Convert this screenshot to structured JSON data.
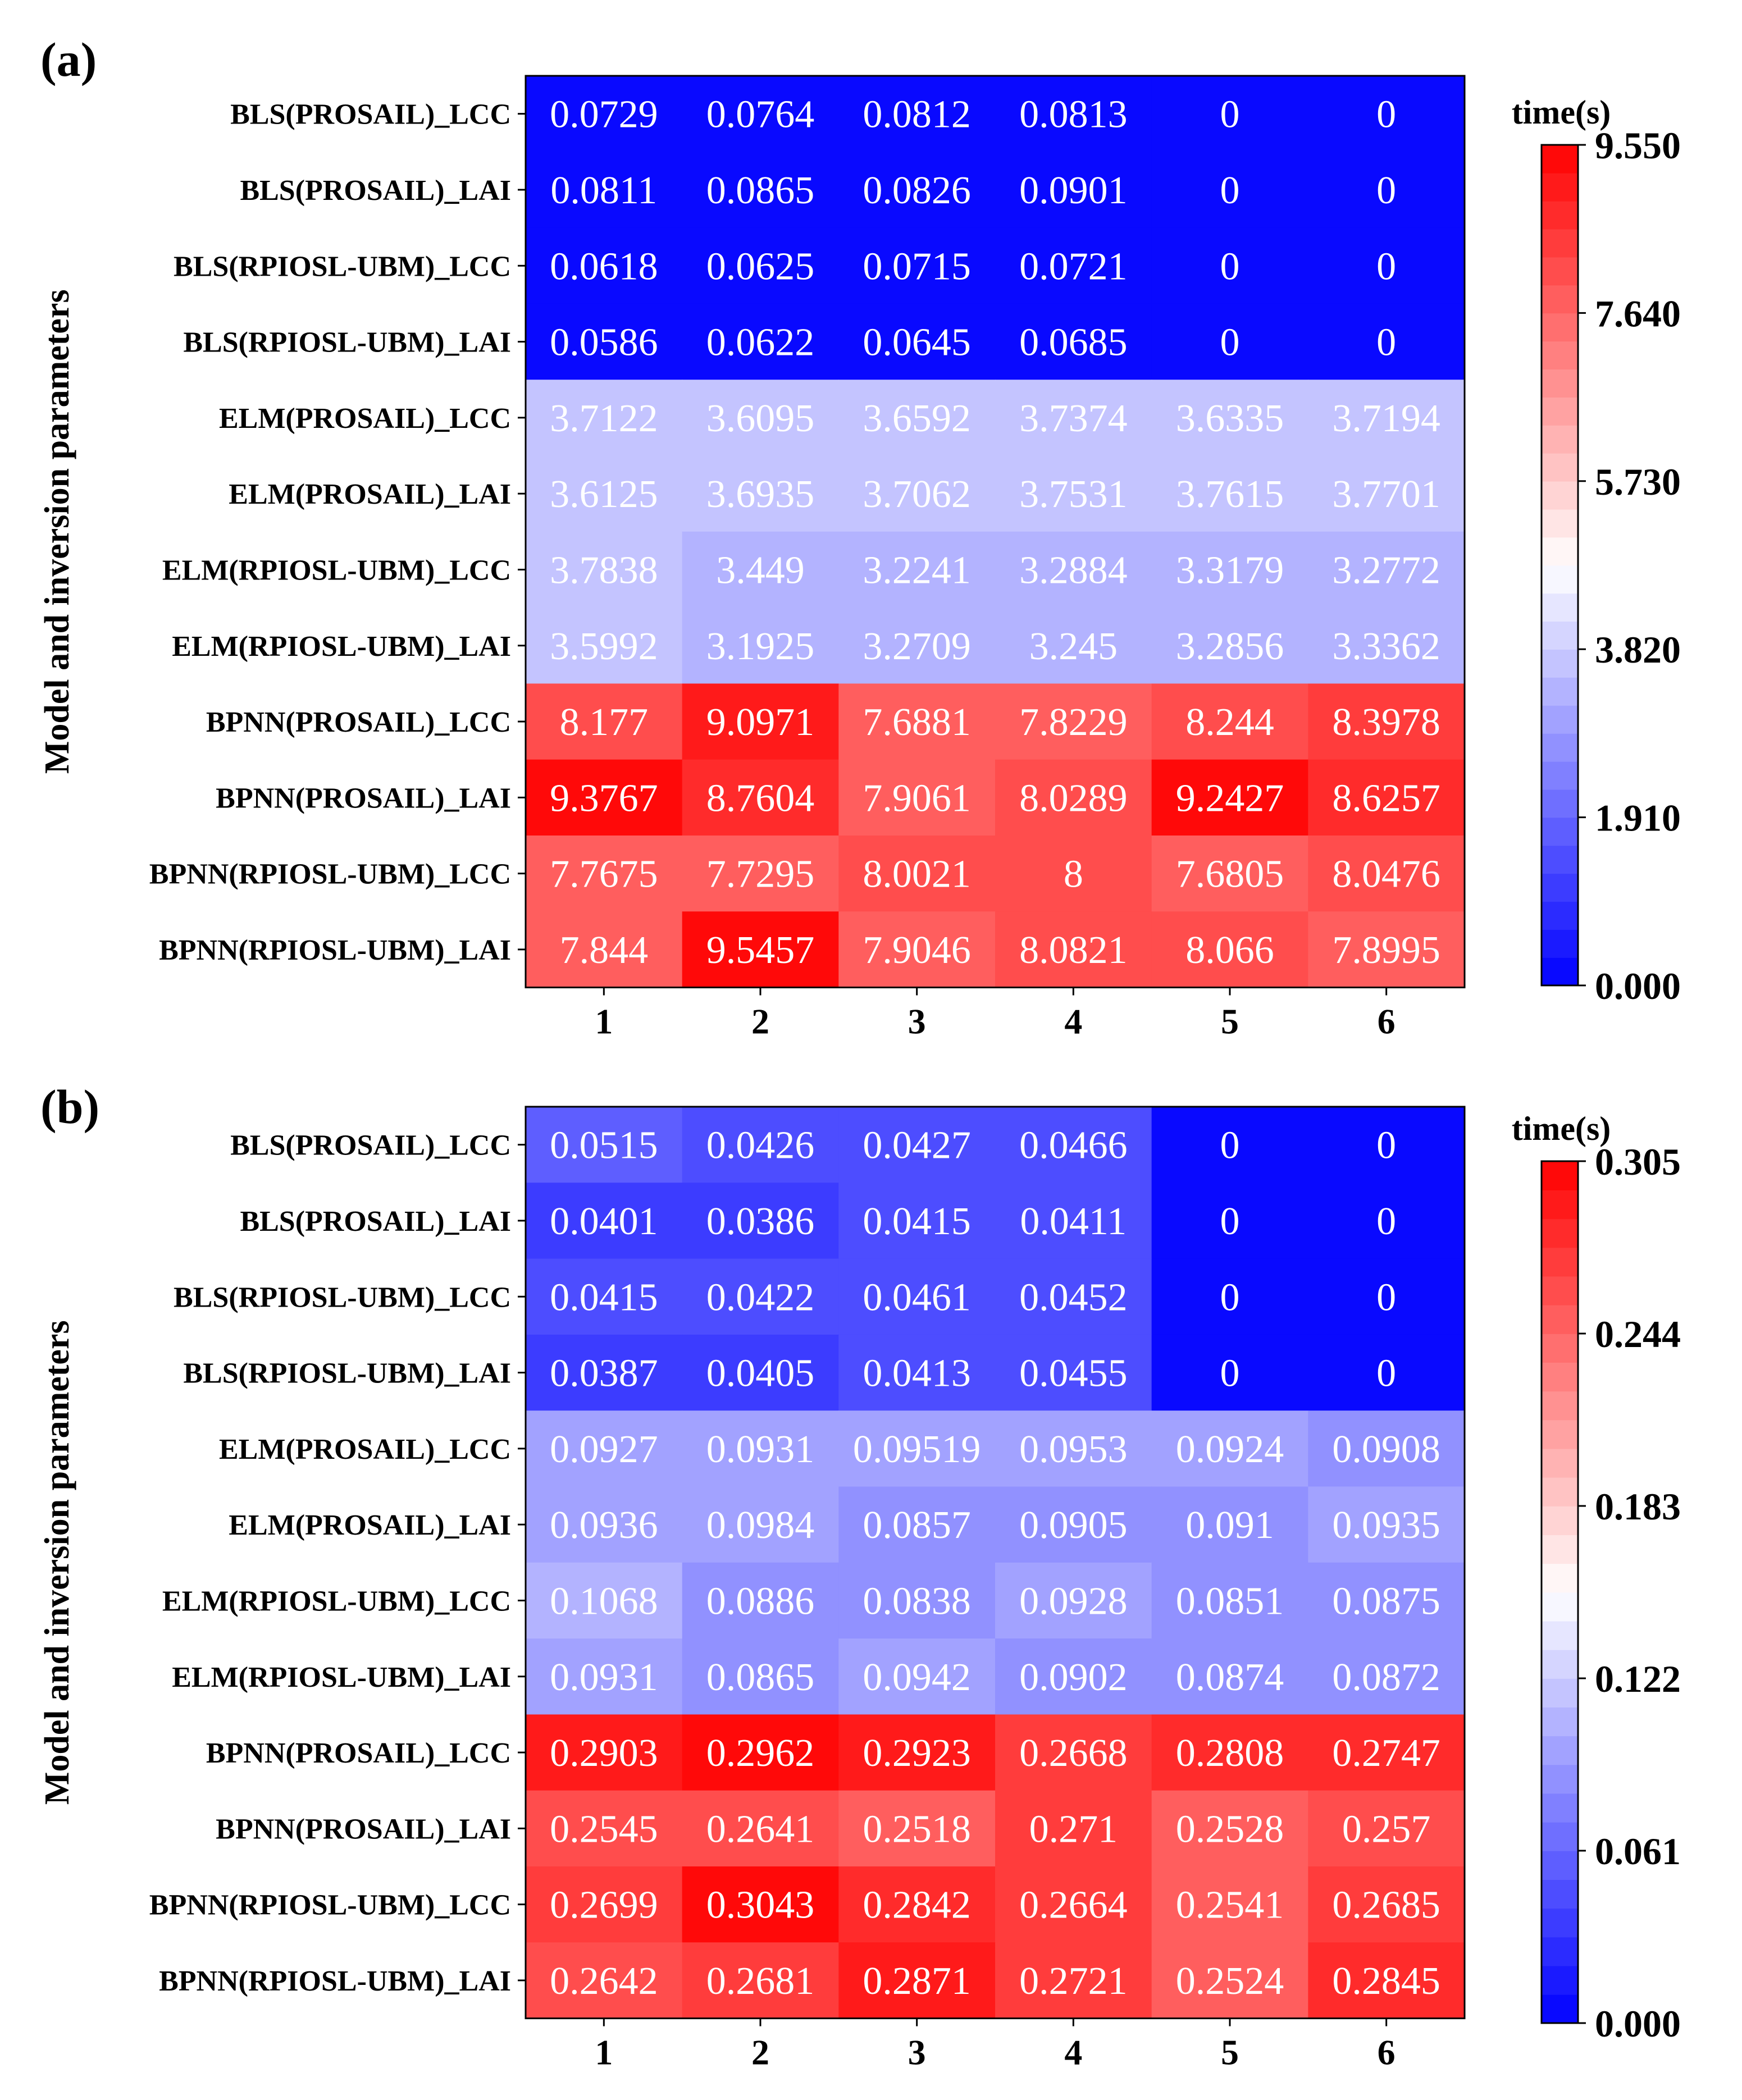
{
  "chart_data": [
    {
      "type": "heatmap",
      "panel_label": "(a)",
      "ylabel": "Model and inversion parameters",
      "rows": [
        "BLS(PROSAIL)_LCC",
        "BLS(PROSAIL)_LAI",
        "BLS(RPIOSL-UBM)_LCC",
        "BLS(RPIOSL-UBM)_LAI",
        "ELM(PROSAIL)_LCC",
        "ELM(PROSAIL)_LAI",
        "ELM(RPIOSL-UBM)_LCC",
        "ELM(RPIOSL-UBM)_LAI",
        "BPNN(PROSAIL)_LCC",
        "BPNN(PROSAIL)_LAI",
        "BPNN(RPIOSL-UBM)_LCC",
        "BPNN(RPIOSL-UBM)_LAI"
      ],
      "columns": [
        "1",
        "2",
        "3",
        "4",
        "5",
        "6"
      ],
      "cell_labels": [
        [
          "0.0729",
          "0.0764",
          "0.0812",
          "0.0813",
          "0",
          "0"
        ],
        [
          "0.0811",
          "0.0865",
          "0.0826",
          "0.0901",
          "0",
          "0"
        ],
        [
          "0.0618",
          "0.0625",
          "0.0715",
          "0.0721",
          "0",
          "0"
        ],
        [
          "0.0586",
          "0.0622",
          "0.0645",
          "0.0685",
          "0",
          "0"
        ],
        [
          "3.7122",
          "3.6095",
          "3.6592",
          "3.7374",
          "3.6335",
          "3.7194"
        ],
        [
          "3.6125",
          "3.6935",
          "3.7062",
          "3.7531",
          "3.7615",
          "3.7701"
        ],
        [
          "3.7838",
          "3.449",
          "3.2241",
          "3.2884",
          "3.3179",
          "3.2772"
        ],
        [
          "3.5992",
          "3.1925",
          "3.2709",
          "3.245",
          "3.2856",
          "3.3362"
        ],
        [
          "8.177",
          "9.0971",
          "7.6881",
          "7.8229",
          "8.244",
          "8.3978"
        ],
        [
          "9.3767",
          "8.7604",
          "7.9061",
          "8.0289",
          "9.2427",
          "8.6257"
        ],
        [
          "7.7675",
          "7.7295",
          "8.0021",
          "8",
          "7.6805",
          "8.0476"
        ],
        [
          "7.844",
          "9.5457",
          "7.9046",
          "8.0821",
          "8.066",
          "7.8995"
        ]
      ],
      "colorbar": {
        "title": "time(s)",
        "vmin": 0.0,
        "vmax": 9.55,
        "tick_labels": [
          "0.000",
          "1.910",
          "3.820",
          "5.730",
          "7.640",
          "9.550"
        ],
        "colormap": "bwr",
        "levels": 30
      }
    },
    {
      "type": "heatmap",
      "panel_label": "(b)",
      "ylabel": "Model and inversion parameters",
      "rows": [
        "BLS(PROSAIL)_LCC",
        "BLS(PROSAIL)_LAI",
        "BLS(RPIOSL-UBM)_LCC",
        "BLS(RPIOSL-UBM)_LAI",
        "ELM(PROSAIL)_LCC",
        "ELM(PROSAIL)_LAI",
        "ELM(RPIOSL-UBM)_LCC",
        "ELM(RPIOSL-UBM)_LAI",
        "BPNN(PROSAIL)_LCC",
        "BPNN(PROSAIL)_LAI",
        "BPNN(RPIOSL-UBM)_LCC",
        "BPNN(RPIOSL-UBM)_LAI"
      ],
      "columns": [
        "1",
        "2",
        "3",
        "4",
        "5",
        "6"
      ],
      "cell_labels": [
        [
          "0.0515",
          "0.0426",
          "0.0427",
          "0.0466",
          "0",
          "0"
        ],
        [
          "0.0401",
          "0.0386",
          "0.0415",
          "0.0411",
          "0",
          "0"
        ],
        [
          "0.0415",
          "0.0422",
          "0.0461",
          "0.0452",
          "0",
          "0"
        ],
        [
          "0.0387",
          "0.0405",
          "0.0413",
          "0.0455",
          "0",
          "0"
        ],
        [
          "0.0927",
          "0.0931",
          "0.09519",
          "0.0953",
          "0.0924",
          "0.0908"
        ],
        [
          "0.0936",
          "0.0984",
          "0.0857",
          "0.0905",
          "0.091",
          "0.0935"
        ],
        [
          "0.1068",
          "0.0886",
          "0.0838",
          "0.0928",
          "0.0851",
          "0.0875"
        ],
        [
          "0.0931",
          "0.0865",
          "0.0942",
          "0.0902",
          "0.0874",
          "0.0872"
        ],
        [
          "0.2903",
          "0.2962",
          "0.2923",
          "0.2668",
          "0.2808",
          "0.2747"
        ],
        [
          "0.2545",
          "0.2641",
          "0.2518",
          "0.271",
          "0.2528",
          "0.257"
        ],
        [
          "0.2699",
          "0.3043",
          "0.2842",
          "0.2664",
          "0.2541",
          "0.2685"
        ],
        [
          "0.2642",
          "0.2681",
          "0.2871",
          "0.2721",
          "0.2524",
          "0.2845"
        ]
      ],
      "colorbar": {
        "title": "time(s)",
        "vmin": 0.0,
        "vmax": 0.305,
        "tick_labels": [
          "0.000",
          "0.061",
          "0.122",
          "0.183",
          "0.244",
          "0.305"
        ],
        "colormap": "bwr",
        "levels": 30
      }
    }
  ]
}
